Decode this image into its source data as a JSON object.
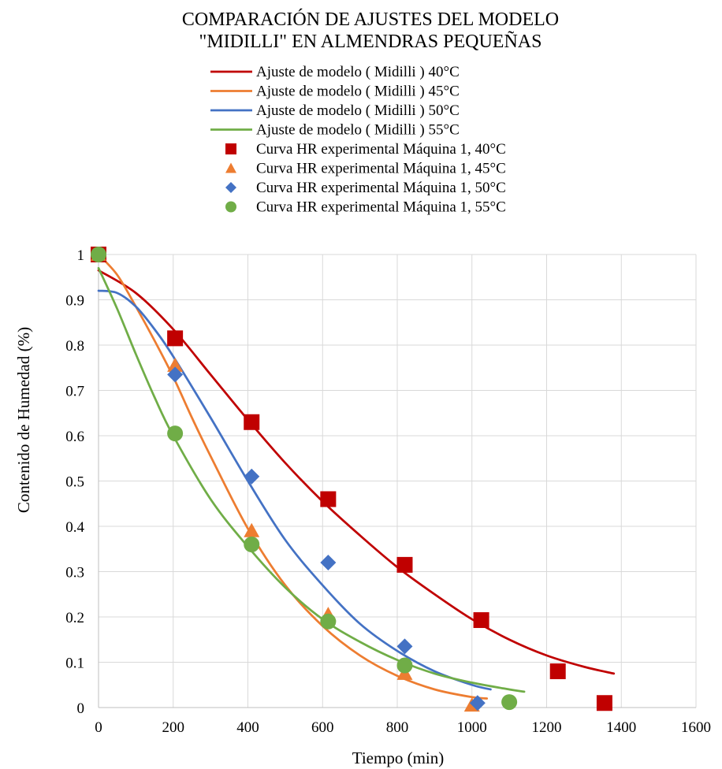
{
  "chart_data": {
    "type": "scatter",
    "title_lines": [
      "COMPARACIÓN DE AJUSTES DEL MODELO",
      "\"MIDILLI\" EN ALMENDRAS PEQUEÑAS"
    ],
    "xlabel": "Tiempo (min)",
    "ylabel": "Contenido de Humedad (%)",
    "xlim": [
      0,
      1600
    ],
    "ylim": [
      0,
      1
    ],
    "x_ticks": [
      "0",
      "200",
      "400",
      "600",
      "800",
      "1000",
      "1200",
      "1400",
      "1600"
    ],
    "y_ticks": [
      "0",
      "0.1",
      "0.2",
      "0.3",
      "0.4",
      "0.5",
      "0.6",
      "0.7",
      "0.8",
      "0.9",
      "1"
    ],
    "grid": true,
    "legend_position": "top",
    "series": [
      {
        "name": "Ajuste de modelo ( Midilli ) 40°C",
        "kind": "line",
        "color": "#c00000",
        "x": [
          0,
          100,
          200,
          300,
          400,
          500,
          600,
          700,
          800,
          900,
          1000,
          1100,
          1200,
          1300,
          1380
        ],
        "y": [
          0.965,
          0.915,
          0.835,
          0.735,
          0.635,
          0.54,
          0.455,
          0.38,
          0.31,
          0.25,
          0.195,
          0.15,
          0.115,
          0.09,
          0.075
        ]
      },
      {
        "name": "Ajuste de modelo ( Midilli ) 45°C",
        "kind": "line",
        "color": "#ed7d31",
        "x": [
          0,
          50,
          100,
          150,
          200,
          250,
          300,
          400,
          500,
          600,
          700,
          800,
          900,
          1000,
          1040
        ],
        "y": [
          1.0,
          0.955,
          0.885,
          0.81,
          0.73,
          0.64,
          0.555,
          0.395,
          0.27,
          0.18,
          0.115,
          0.07,
          0.04,
          0.023,
          0.02
        ]
      },
      {
        "name": "Ajuste de modelo ( Midilli ) 50°C",
        "kind": "line",
        "color": "#4472c4",
        "x": [
          0,
          50,
          100,
          150,
          200,
          300,
          400,
          500,
          600,
          700,
          800,
          900,
          1000,
          1050
        ],
        "y": [
          0.92,
          0.915,
          0.885,
          0.835,
          0.775,
          0.64,
          0.5,
          0.37,
          0.27,
          0.185,
          0.125,
          0.08,
          0.05,
          0.04
        ]
      },
      {
        "name": "Ajuste de modelo ( Midilli ) 55°C",
        "kind": "line",
        "color": "#70ad47",
        "x": [
          0,
          50,
          100,
          150,
          200,
          300,
          400,
          500,
          600,
          700,
          800,
          900,
          1000,
          1100,
          1140
        ],
        "y": [
          0.97,
          0.88,
          0.78,
          0.685,
          0.6,
          0.46,
          0.355,
          0.265,
          0.195,
          0.145,
          0.105,
          0.075,
          0.055,
          0.04,
          0.035
        ]
      },
      {
        "name": "Curva HR experimental Máquina 1, 40°C",
        "kind": "marker",
        "marker": "square",
        "color": "#c00000",
        "x": [
          0,
          205,
          410,
          615,
          820,
          1025,
          1230,
          1355
        ],
        "y": [
          1.0,
          0.815,
          0.63,
          0.46,
          0.315,
          0.193,
          0.08,
          0.01
        ]
      },
      {
        "name": "Curva HR experimental Máquina 1, 45°C",
        "kind": "marker",
        "marker": "triangle",
        "color": "#ed7d31",
        "x": [
          0,
          205,
          410,
          615,
          820,
          1000
        ],
        "y": [
          1.0,
          0.755,
          0.39,
          0.205,
          0.075,
          0.005
        ]
      },
      {
        "name": "Curva HR experimental Máquina 1, 50°C",
        "kind": "marker",
        "marker": "diamond",
        "color": "#4472c4",
        "x": [
          0,
          205,
          410,
          615,
          820,
          1015
        ],
        "y": [
          1.0,
          0.735,
          0.51,
          0.32,
          0.135,
          0.01
        ]
      },
      {
        "name": "Curva HR experimental Máquina 1, 55°C",
        "kind": "marker",
        "marker": "circle",
        "color": "#70ad47",
        "x": [
          0,
          205,
          410,
          615,
          820,
          1100
        ],
        "y": [
          1.0,
          0.605,
          0.36,
          0.19,
          0.093,
          0.012
        ]
      }
    ]
  }
}
